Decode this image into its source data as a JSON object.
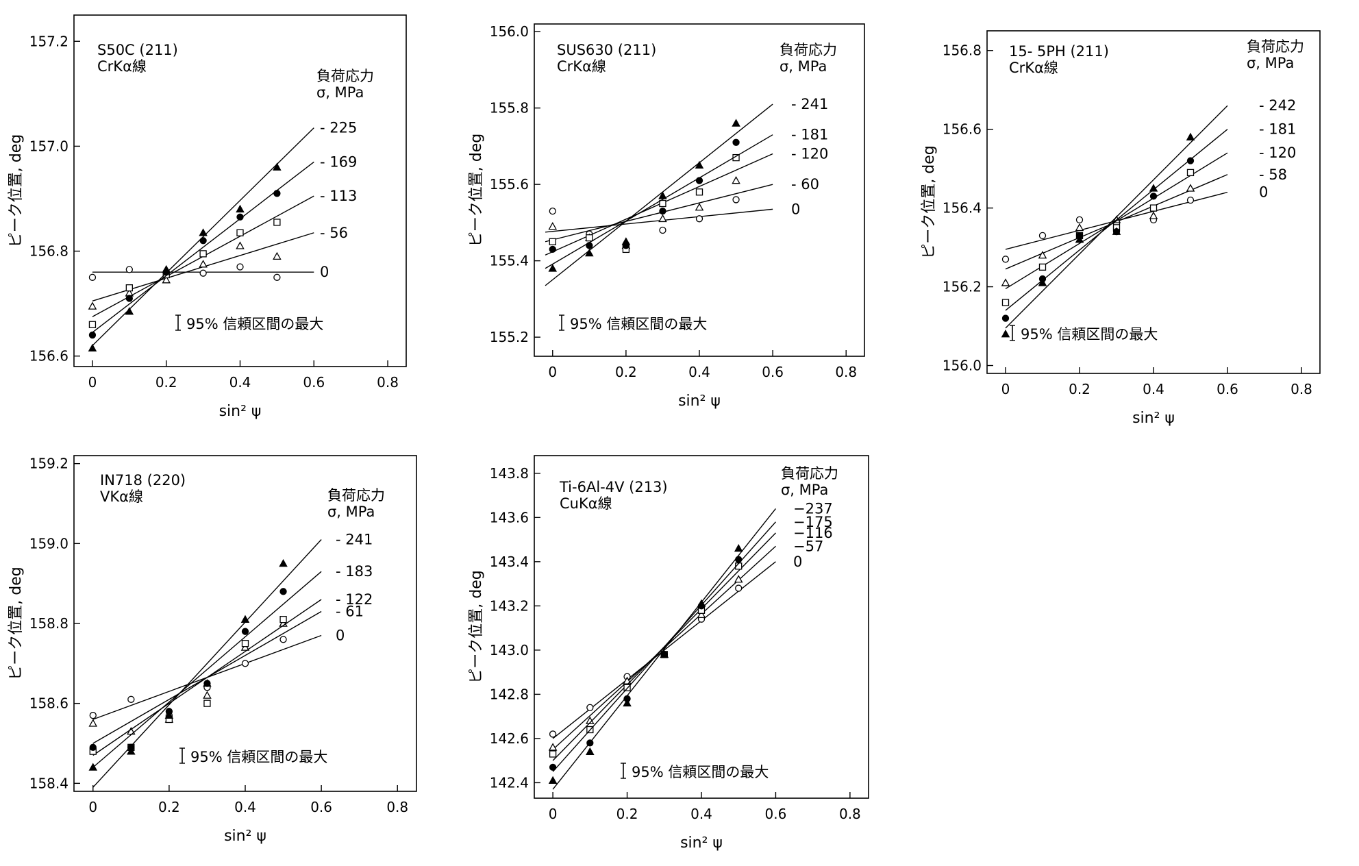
{
  "chart_data": [
    {
      "type": "scatter",
      "title": "S50C (211)",
      "subtitle": "CrKα線",
      "xlabel": "sin² ψ",
      "ylabel": "ピーク位置, deg",
      "xlim": [
        -0.05,
        0.85
      ],
      "ylim": [
        156.58,
        157.25
      ],
      "xticks": [
        0,
        0.2,
        0.4,
        0.6,
        0.8
      ],
      "xtick_labels": [
        "0",
        "0.2",
        "0.4",
        "0.6",
        "0.8"
      ],
      "yticks": [
        156.6,
        156.8,
        157.0,
        157.2
      ],
      "ytick_labels": [
        "156.6",
        "156.8",
        "157.0",
        "157.2"
      ],
      "legend_title": [
        "負荷応力",
        "σ, MPa"
      ],
      "ci_label": "95% 信頼区間の最大",
      "grid": false,
      "series": [
        {
          "name": "0",
          "label": "0",
          "marker": "circle-open",
          "x": [
            0,
            0.1,
            0.2,
            0.3,
            0.4,
            0.5
          ],
          "y": [
            156.75,
            156.765,
            156.76,
            156.758,
            156.77,
            156.75
          ],
          "fit": [
            [
              0,
              156.76
            ],
            [
              0.6,
              156.76
            ]
          ]
        },
        {
          "name": "56",
          "label": "- 56",
          "marker": "triangle-open",
          "x": [
            0,
            0.1,
            0.2,
            0.3,
            0.4,
            0.5
          ],
          "y": [
            156.695,
            156.72,
            156.745,
            156.775,
            156.81,
            156.79
          ],
          "fit": [
            [
              0,
              156.705
            ],
            [
              0.6,
              156.835
            ]
          ]
        },
        {
          "name": "113",
          "label": "- 113",
          "marker": "square-open",
          "x": [
            0,
            0.1,
            0.2,
            0.3,
            0.4,
            0.5
          ],
          "y": [
            156.66,
            156.73,
            156.755,
            156.795,
            156.835,
            156.855
          ],
          "fit": [
            [
              0,
              156.675
            ],
            [
              0.6,
              156.905
            ]
          ]
        },
        {
          "name": "169",
          "label": "- 169",
          "marker": "circle-filled",
          "x": [
            0,
            0.1,
            0.2,
            0.3,
            0.4,
            0.5
          ],
          "y": [
            156.64,
            156.71,
            156.76,
            156.82,
            156.865,
            156.91
          ],
          "fit": [
            [
              0,
              156.645
            ],
            [
              0.6,
              156.97
            ]
          ]
        },
        {
          "name": "225",
          "label": "- 225",
          "marker": "triangle-filled",
          "x": [
            0,
            0.1,
            0.2,
            0.3,
            0.4,
            0.5
          ],
          "y": [
            156.615,
            156.685,
            156.765,
            156.835,
            156.88,
            156.96
          ],
          "fit": [
            [
              0,
              156.62
            ],
            [
              0.6,
              157.035
            ]
          ]
        }
      ]
    },
    {
      "type": "scatter",
      "title": "SUS630 (211)",
      "subtitle": "CrKα線",
      "xlabel": "sin² ψ",
      "ylabel": "ピーク位置, deg",
      "xlim": [
        -0.05,
        0.85
      ],
      "ylim": [
        155.15,
        156.02
      ],
      "xticks": [
        0,
        0.2,
        0.4,
        0.6,
        0.8
      ],
      "xtick_labels": [
        "0",
        "0.2",
        "0.4",
        "0.6",
        "0.8"
      ],
      "yticks": [
        155.2,
        155.4,
        155.6,
        155.8,
        156.0
      ],
      "ytick_labels": [
        "155.2",
        "155.4",
        "155.6",
        "155.8",
        "156.0"
      ],
      "legend_title": [
        "負荷応力",
        "σ, MPa"
      ],
      "ci_label": "95% 信頼区間の最大",
      "grid": false,
      "series": [
        {
          "name": "0",
          "label": "0",
          "marker": "circle-open",
          "x": [
            0,
            0.1,
            0.2,
            0.3,
            0.4,
            0.5
          ],
          "y": [
            155.53,
            155.47,
            155.44,
            155.48,
            155.51,
            155.56
          ],
          "fit": [
            [
              -0.02,
              155.475
            ],
            [
              0.6,
              155.535
            ]
          ]
        },
        {
          "name": "60",
          "label": "- 60",
          "marker": "triangle-open",
          "x": [
            0,
            0.1,
            0.2,
            0.3,
            0.4,
            0.5
          ],
          "y": [
            155.49,
            155.46,
            155.44,
            155.51,
            155.54,
            155.61
          ],
          "fit": [
            [
              -0.02,
              155.45
            ],
            [
              0.6,
              155.6
            ]
          ]
        },
        {
          "name": "120",
          "label": "- 120",
          "marker": "square-open",
          "x": [
            0,
            0.1,
            0.2,
            0.3,
            0.4,
            0.5
          ],
          "y": [
            155.45,
            155.46,
            155.43,
            155.55,
            155.58,
            155.67
          ],
          "fit": [
            [
              -0.02,
              155.415
            ],
            [
              0.6,
              155.68
            ]
          ]
        },
        {
          "name": "181",
          "label": "- 181",
          "marker": "circle-filled",
          "x": [
            0,
            0.1,
            0.2,
            0.3,
            0.4,
            0.5
          ],
          "y": [
            155.43,
            155.44,
            155.44,
            155.53,
            155.61,
            155.71
          ],
          "fit": [
            [
              -0.02,
              155.38
            ],
            [
              0.6,
              155.73
            ]
          ]
        },
        {
          "name": "241",
          "label": "- 241",
          "marker": "triangle-filled",
          "x": [
            0,
            0.1,
            0.2,
            0.3,
            0.4,
            0.5
          ],
          "y": [
            155.38,
            155.42,
            155.45,
            155.57,
            155.65,
            155.76
          ],
          "fit": [
            [
              -0.02,
              155.335
            ],
            [
              0.6,
              155.81
            ]
          ]
        }
      ]
    },
    {
      "type": "scatter",
      "title": "15- 5PH (211)",
      "subtitle": "CrKα線",
      "xlabel": "sin² ψ",
      "ylabel": "ピーク位置, deg",
      "xlim": [
        -0.05,
        0.85
      ],
      "ylim": [
        155.98,
        156.85
      ],
      "xticks": [
        0,
        0.2,
        0.4,
        0.6,
        0.8
      ],
      "xtick_labels": [
        "0",
        "0.2",
        "0.4",
        "0.6",
        "0.8"
      ],
      "yticks": [
        156.0,
        156.2,
        156.4,
        156.6,
        156.8
      ],
      "ytick_labels": [
        "156.0",
        "156.2",
        "156.4",
        "156.6",
        "156.8"
      ],
      "legend_title": [
        "負荷応力",
        "σ, MPa"
      ],
      "ci_label": "95% 信頼区間の最大",
      "grid": false,
      "series": [
        {
          "name": "0",
          "label": "0",
          "marker": "circle-open",
          "x": [
            0,
            0.1,
            0.2,
            0.3,
            0.4,
            0.5
          ],
          "y": [
            156.27,
            156.33,
            156.37,
            156.36,
            156.37,
            156.42
          ],
          "fit": [
            [
              0,
              156.295
            ],
            [
              0.6,
              156.44
            ]
          ]
        },
        {
          "name": "58",
          "label": "- 58",
          "marker": "triangle-open",
          "x": [
            0,
            0.1,
            0.2,
            0.3,
            0.4,
            0.5
          ],
          "y": [
            156.21,
            156.28,
            156.35,
            156.37,
            156.38,
            156.45
          ],
          "fit": [
            [
              0,
              156.245
            ],
            [
              0.6,
              156.485
            ]
          ]
        },
        {
          "name": "120",
          "label": "- 120",
          "marker": "square-open",
          "x": [
            0,
            0.1,
            0.2,
            0.3,
            0.4,
            0.5
          ],
          "y": [
            156.16,
            156.25,
            156.33,
            156.35,
            156.4,
            156.49
          ],
          "fit": [
            [
              0,
              156.195
            ],
            [
              0.6,
              156.54
            ]
          ]
        },
        {
          "name": "181",
          "label": "- 181",
          "marker": "circle-filled",
          "x": [
            0,
            0.1,
            0.2,
            0.3,
            0.4,
            0.5
          ],
          "y": [
            156.12,
            156.22,
            156.33,
            156.34,
            156.43,
            156.52
          ],
          "fit": [
            [
              0,
              156.14
            ],
            [
              0.6,
              156.6
            ]
          ]
        },
        {
          "name": "242",
          "label": "- 242",
          "marker": "triangle-filled",
          "x": [
            0,
            0.1,
            0.2,
            0.3,
            0.4,
            0.5
          ],
          "y": [
            156.08,
            156.21,
            156.32,
            156.34,
            156.45,
            156.58
          ],
          "fit": [
            [
              0,
              156.095
            ],
            [
              0.6,
              156.66
            ]
          ]
        }
      ]
    },
    {
      "type": "scatter",
      "title": "IN718 (220)",
      "subtitle": "VKα線",
      "xlabel": "sin² ψ",
      "ylabel": "ピーク位置, deg",
      "xlim": [
        -0.05,
        0.85
      ],
      "ylim": [
        158.38,
        159.22
      ],
      "xticks": [
        0,
        0.2,
        0.4,
        0.6,
        0.8
      ],
      "xtick_labels": [
        "0",
        "0.2",
        "0.4",
        "0.6",
        "0.8"
      ],
      "yticks": [
        158.4,
        158.6,
        158.8,
        159.0,
        159.2
      ],
      "ytick_labels": [
        "158.4",
        "158.6",
        "158.8",
        "159.0",
        "159.2"
      ],
      "legend_title": [
        "負荷応力",
        "σ, MPa"
      ],
      "ci_label": "95% 信頼区間の最大",
      "grid": false,
      "series": [
        {
          "name": "0",
          "label": "0",
          "marker": "circle-open",
          "x": [
            0,
            0.1,
            0.2,
            0.3,
            0.4,
            0.5
          ],
          "y": [
            158.57,
            158.61,
            158.57,
            158.64,
            158.7,
            158.76
          ],
          "fit": [
            [
              0,
              158.56
            ],
            [
              0.6,
              158.77
            ]
          ]
        },
        {
          "name": "61",
          "label": "- 61",
          "marker": "triangle-open",
          "x": [
            0,
            0.1,
            0.2,
            0.3,
            0.4,
            0.5
          ],
          "y": [
            158.55,
            158.53,
            158.56,
            158.62,
            158.74,
            158.8
          ],
          "fit": [
            [
              0,
              158.5
            ],
            [
              0.6,
              158.83
            ]
          ]
        },
        {
          "name": "122",
          "label": "- 122",
          "marker": "square-open",
          "x": [
            0,
            0.1,
            0.2,
            0.3,
            0.4,
            0.5
          ],
          "y": [
            158.48,
            158.49,
            158.56,
            158.6,
            158.75,
            158.81
          ],
          "fit": [
            [
              0,
              158.47
            ],
            [
              0.6,
              158.86
            ]
          ]
        },
        {
          "name": "183",
          "label": "- 183",
          "marker": "circle-filled",
          "x": [
            0,
            0.1,
            0.2,
            0.3,
            0.4,
            0.5
          ],
          "y": [
            158.49,
            158.49,
            158.58,
            158.65,
            158.78,
            158.88
          ],
          "fit": [
            [
              0,
              158.44
            ],
            [
              0.6,
              158.93
            ]
          ]
        },
        {
          "name": "241",
          "label": "- 241",
          "marker": "triangle-filled",
          "x": [
            0,
            0.1,
            0.2,
            0.3,
            0.4,
            0.5
          ],
          "y": [
            158.44,
            158.48,
            158.57,
            158.65,
            158.81,
            158.95
          ],
          "fit": [
            [
              0,
              158.39
            ],
            [
              0.6,
              159.01
            ]
          ]
        }
      ]
    },
    {
      "type": "scatter",
      "title": "Ti-6Al-4V (213)",
      "subtitle": "CuKα線",
      "xlabel": "sin² ψ",
      "ylabel": "ピーク位置, deg",
      "xlim": [
        -0.05,
        0.85
      ],
      "ylim": [
        142.33,
        143.88
      ],
      "xticks": [
        0,
        0.2,
        0.4,
        0.6,
        0.8
      ],
      "xtick_labels": [
        "0",
        "0.2",
        "0.4",
        "0.6",
        "0.8"
      ],
      "yticks": [
        142.4,
        142.6,
        142.8,
        143.0,
        143.2,
        143.4,
        143.6,
        143.8
      ],
      "ytick_labels": [
        "142.4",
        "142.6",
        "142.8",
        "143.0",
        "143.2",
        "143.4",
        "143.6",
        "143.8"
      ],
      "legend_title": [
        "負荷応力",
        "σ, MPa"
      ],
      "ci_label": "95% 信頼区間の最大",
      "grid": false,
      "series": [
        {
          "name": "0",
          "label": "0",
          "marker": "circle-open",
          "x": [
            0,
            0.1,
            0.2,
            0.3,
            0.4,
            0.5
          ],
          "y": [
            142.62,
            142.74,
            142.88,
            142.98,
            143.14,
            143.28
          ],
          "fit": [
            [
              0,
              142.6
            ],
            [
              0.6,
              143.4
            ]
          ]
        },
        {
          "name": "-57",
          "label": "−57",
          "marker": "triangle-open",
          "x": [
            0,
            0.1,
            0.2,
            0.3,
            0.4,
            0.5
          ],
          "y": [
            142.56,
            142.68,
            142.86,
            142.98,
            143.16,
            143.32
          ],
          "fit": [
            [
              0,
              142.55
            ],
            [
              0.6,
              143.47
            ]
          ]
        },
        {
          "name": "-116",
          "label": "−116",
          "marker": "square-open",
          "x": [
            0,
            0.1,
            0.2,
            0.3,
            0.4,
            0.5
          ],
          "y": [
            142.53,
            142.64,
            142.83,
            142.98,
            143.18,
            143.38
          ],
          "fit": [
            [
              0,
              142.5
            ],
            [
              0.6,
              143.53
            ]
          ]
        },
        {
          "name": "-175",
          "label": "−175",
          "marker": "circle-filled",
          "x": [
            0,
            0.1,
            0.2,
            0.3,
            0.4,
            0.5
          ],
          "y": [
            142.47,
            142.58,
            142.78,
            142.98,
            143.2,
            143.41
          ],
          "fit": [
            [
              0,
              142.45
            ],
            [
              0.6,
              143.58
            ]
          ]
        },
        {
          "name": "-237",
          "label": "−237",
          "marker": "triangle-filled",
          "x": [
            0,
            0.1,
            0.2,
            0.3,
            0.4,
            0.5
          ],
          "y": [
            142.41,
            142.54,
            142.76,
            142.98,
            143.21,
            143.46
          ],
          "fit": [
            [
              0,
              142.37
            ],
            [
              0.6,
              143.64
            ]
          ]
        }
      ]
    }
  ]
}
